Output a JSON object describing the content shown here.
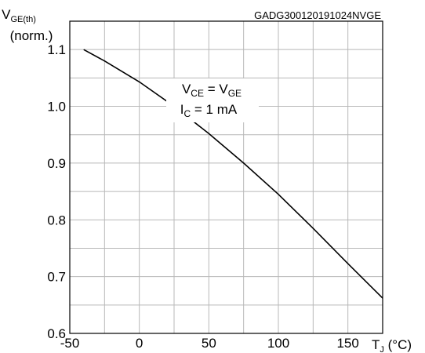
{
  "chart_data": {
    "type": "line",
    "figure_code": "GADG300120191024NVGE",
    "ylabel": {
      "main": "V",
      "sub": "GE(th)",
      "line2": "(norm.)"
    },
    "xlabel": {
      "main": "T",
      "sub": "J",
      "unit": " (°C)"
    },
    "xlim": [
      -50,
      175
    ],
    "ylim": [
      0.6,
      1.15
    ],
    "x_ticks": [
      -50,
      0,
      50,
      100,
      150
    ],
    "x_tick_labels": [
      "-50",
      "0",
      "50",
      "100",
      "150"
    ],
    "y_ticks": [
      0.6,
      0.7,
      0.8,
      0.9,
      1.0,
      1.1
    ],
    "y_tick_labels": [
      "0.6",
      "0.7",
      "0.8",
      "0.9",
      "1.0",
      "1.1"
    ],
    "x_minor_step": 25,
    "y_minor_step": 0.05,
    "grid": true,
    "annotations": [
      {
        "id": "vce",
        "main": "V",
        "sub": "CE",
        "mid": " = V",
        "sub2": "GE"
      },
      {
        "id": "ic",
        "main": "I",
        "sub": "C",
        "mid": " = 1 mA"
      }
    ],
    "series": [
      {
        "color": "#000000",
        "x": [
          -40,
          -25,
          0,
          25,
          50,
          75,
          100,
          125,
          150,
          175
        ],
        "y": [
          1.1,
          1.08,
          1.043,
          1.0,
          0.952,
          0.9,
          0.845,
          0.785,
          0.723,
          0.662
        ]
      }
    ]
  }
}
